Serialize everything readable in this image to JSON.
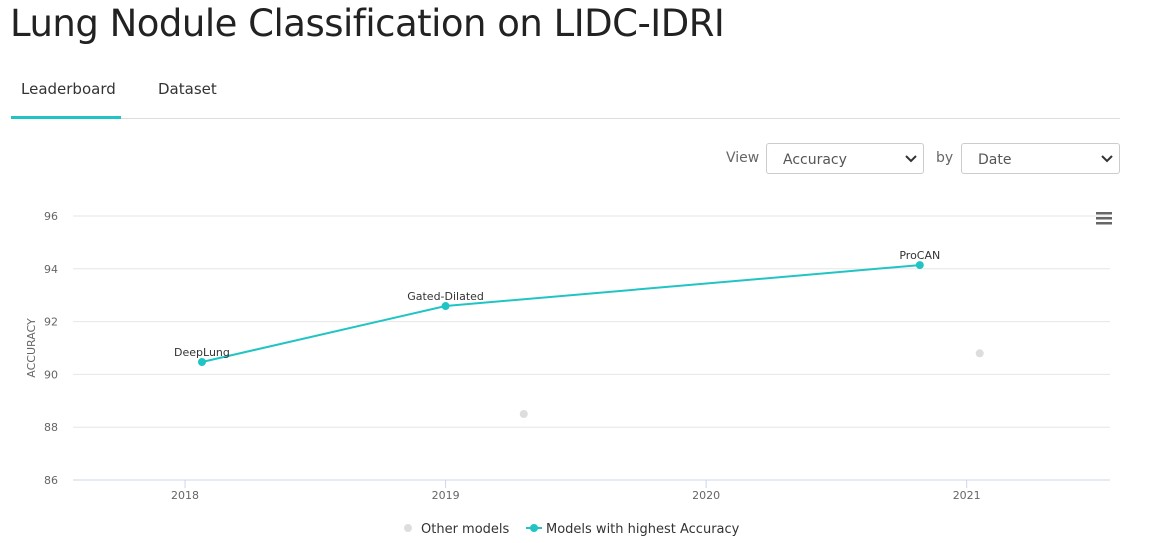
{
  "header": {
    "title": "Lung Nodule Classification on LIDC-IDRI"
  },
  "tabs": [
    "Leaderboard",
    "Dataset"
  ],
  "controls": {
    "view_label": "View",
    "view_value": "Accuracy",
    "by_label": "by",
    "by_value": "Date"
  },
  "chart_data": {
    "type": "line",
    "ylabel": "ACCURACY",
    "xlim": [
      2017.57,
      2021.55
    ],
    "xticks": [
      2018,
      2019,
      2020,
      2021
    ],
    "ylim": [
      86,
      96
    ],
    "yticks": [
      86,
      88,
      90,
      92,
      94,
      96
    ],
    "grid": true,
    "series": [
      {
        "name": "Other models",
        "color": "#dddddd",
        "x": [
          2019.3,
          2021.05
        ],
        "values": [
          88.5,
          90.8
        ]
      },
      {
        "name": "Models with highest Accuracy",
        "color": "#21c4c4",
        "x": [
          2018.065,
          2019.0,
          2020.82
        ],
        "values": [
          90.47,
          92.59,
          94.14
        ],
        "point_labels": [
          "DeepLung",
          "Gated-Dilated",
          "ProCAN"
        ]
      }
    ]
  }
}
